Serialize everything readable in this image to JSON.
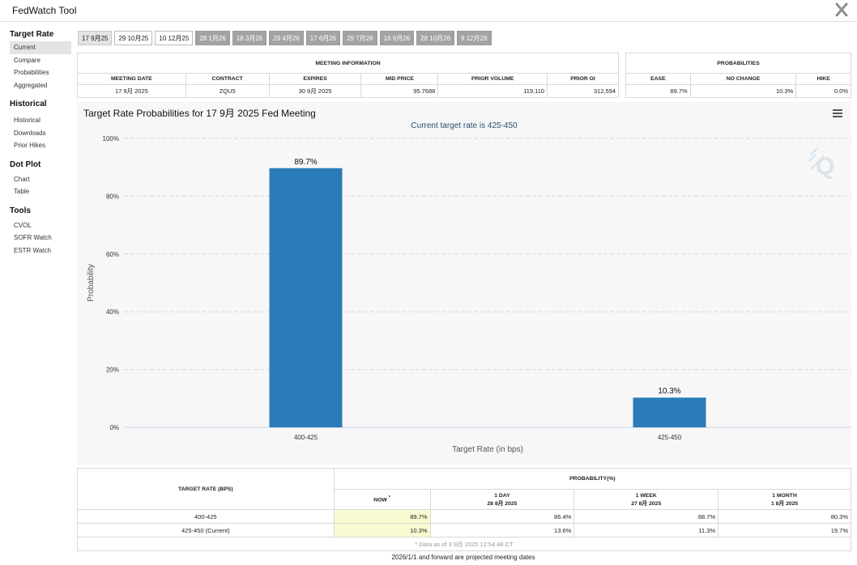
{
  "app": {
    "title": "FedWatch Tool"
  },
  "sidebar": {
    "sections": [
      {
        "heading": "Target Rate",
        "items": [
          "Current",
          "Compare",
          "Probabilities",
          "Aggregated"
        ]
      },
      {
        "heading": "Historical",
        "items": [
          "Historical",
          "Downloads",
          "Prior Hikes"
        ]
      },
      {
        "heading": "Dot Plot",
        "items": [
          "Chart",
          "Table"
        ]
      },
      {
        "heading": "Tools",
        "items": [
          "CVOL",
          "SOFR Watch",
          "ESTR Watch"
        ]
      }
    ]
  },
  "tabs": [
    "17 9月25",
    "29 10月25",
    "10 12月25",
    "28 1月26",
    "18 3月26",
    "29 4月26",
    "17 6月26",
    "29 7月26",
    "16 9月26",
    "28 10月26",
    "9 12月26"
  ],
  "meeting_info": {
    "title": "MEETING INFORMATION",
    "headers": [
      "MEETING DATE",
      "CONTRACT",
      "EXPIRES",
      "MID PRICE",
      "PRIOR VOLUME",
      "PRIOR OI"
    ],
    "values": [
      "17 9月 2025",
      "ZQU5",
      "30 9月 2025",
      "95.7688",
      "119,110",
      "312,594"
    ]
  },
  "probabilities": {
    "title": "PROBABILITIES",
    "headers": [
      "EASE",
      "NO CHANGE",
      "HIKE"
    ],
    "values": [
      "89.7%",
      "10.3%",
      "0.0%"
    ]
  },
  "chart": {
    "title": "Target Rate Probabilities for 17 9月 2025 Fed Meeting",
    "subtitle": "Current target rate is 425-450"
  },
  "chart_data": {
    "type": "bar",
    "categories": [
      "400-425",
      "425-450"
    ],
    "values": [
      89.7,
      10.3
    ],
    "value_labels": [
      "89.7%",
      "10.3%"
    ],
    "title": "Target Rate Probabilities for 17 9月 2025 Fed Meeting",
    "subtitle": "Current target rate is 425-450",
    "xlabel": "Target Rate (in bps)",
    "ylabel": "Probability",
    "ylim": [
      0,
      100
    ],
    "yticks": [
      "0%",
      "20%",
      "40%",
      "60%",
      "80%",
      "100%"
    ],
    "grid": true,
    "bar_color": "#2b7bb9"
  },
  "history": {
    "col_target": "TARGET RATE (BPS)",
    "col_prob": "PROBABILITY(%)",
    "now_label": "NOW",
    "now_marker": "*",
    "day_label": "1 DAY",
    "day_date": "28 8月 2025",
    "week_label": "1 WEEK",
    "week_date": "27 8月 2025",
    "month_label": "1 MONTH",
    "month_date": "1 8月 2025",
    "rows": [
      {
        "rate": "400-425",
        "now": "89.7%",
        "day": "86.4%",
        "week": "88.7%",
        "month": "80.3%"
      },
      {
        "rate": "425-450 (Current)",
        "now": "10.3%",
        "day": "13.6%",
        "week": "11.3%",
        "month": "19.7%"
      }
    ],
    "note": "* Data as of 3 9月 2025 12:54:48 CT"
  },
  "footer": {
    "note": "2026/1/1 and forward are projected meeting dates"
  },
  "colors": {
    "bar": "#2b7bb9",
    "highlight": "#fafad2",
    "tab_projected": "#a3a3a3"
  }
}
